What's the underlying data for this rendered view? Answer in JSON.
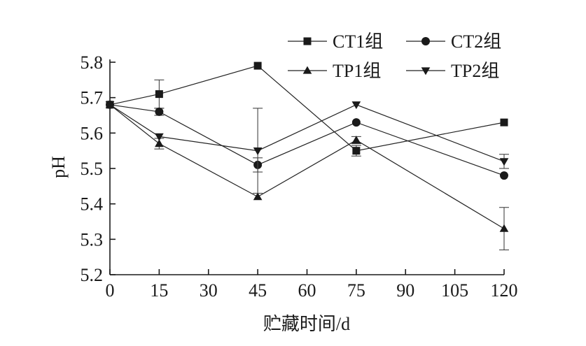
{
  "chart_data": {
    "type": "line",
    "xlabel": "贮藏时间/d",
    "ylabel": "pH",
    "x": [
      0,
      15,
      45,
      75,
      120
    ],
    "xticks": [
      0,
      15,
      30,
      45,
      60,
      75,
      90,
      105,
      120
    ],
    "xlim": [
      0,
      120
    ],
    "ylim": [
      5.2,
      5.8
    ],
    "yticks": [
      "5.2",
      "5.3",
      "5.4",
      "5.5",
      "5.6",
      "5.7",
      "5.8"
    ],
    "legend_position": "top-right",
    "grid": false,
    "series": [
      {
        "name": "CT1组",
        "marker": "square",
        "values": [
          5.68,
          5.71,
          5.79,
          5.55,
          5.63
        ],
        "errors": [
          0.0,
          0.04,
          0.0,
          0.015,
          0.0
        ]
      },
      {
        "name": "CT2组",
        "marker": "circle",
        "values": [
          5.68,
          5.66,
          5.51,
          5.63,
          5.48
        ],
        "errors": [
          0.0,
          0.01,
          0.02,
          0.0,
          0.0
        ]
      },
      {
        "name": "TP1组",
        "marker": "triangle-up",
        "values": [
          5.68,
          5.57,
          5.42,
          5.58,
          5.33
        ],
        "errors": [
          0.0,
          0.015,
          0.0,
          0.01,
          0.06
        ]
      },
      {
        "name": "TP2组",
        "marker": "triangle-down",
        "values": [
          5.68,
          5.59,
          5.55,
          5.68,
          5.52
        ],
        "errors": [
          0.0,
          0.0,
          0.12,
          0.0,
          0.02
        ]
      }
    ]
  }
}
